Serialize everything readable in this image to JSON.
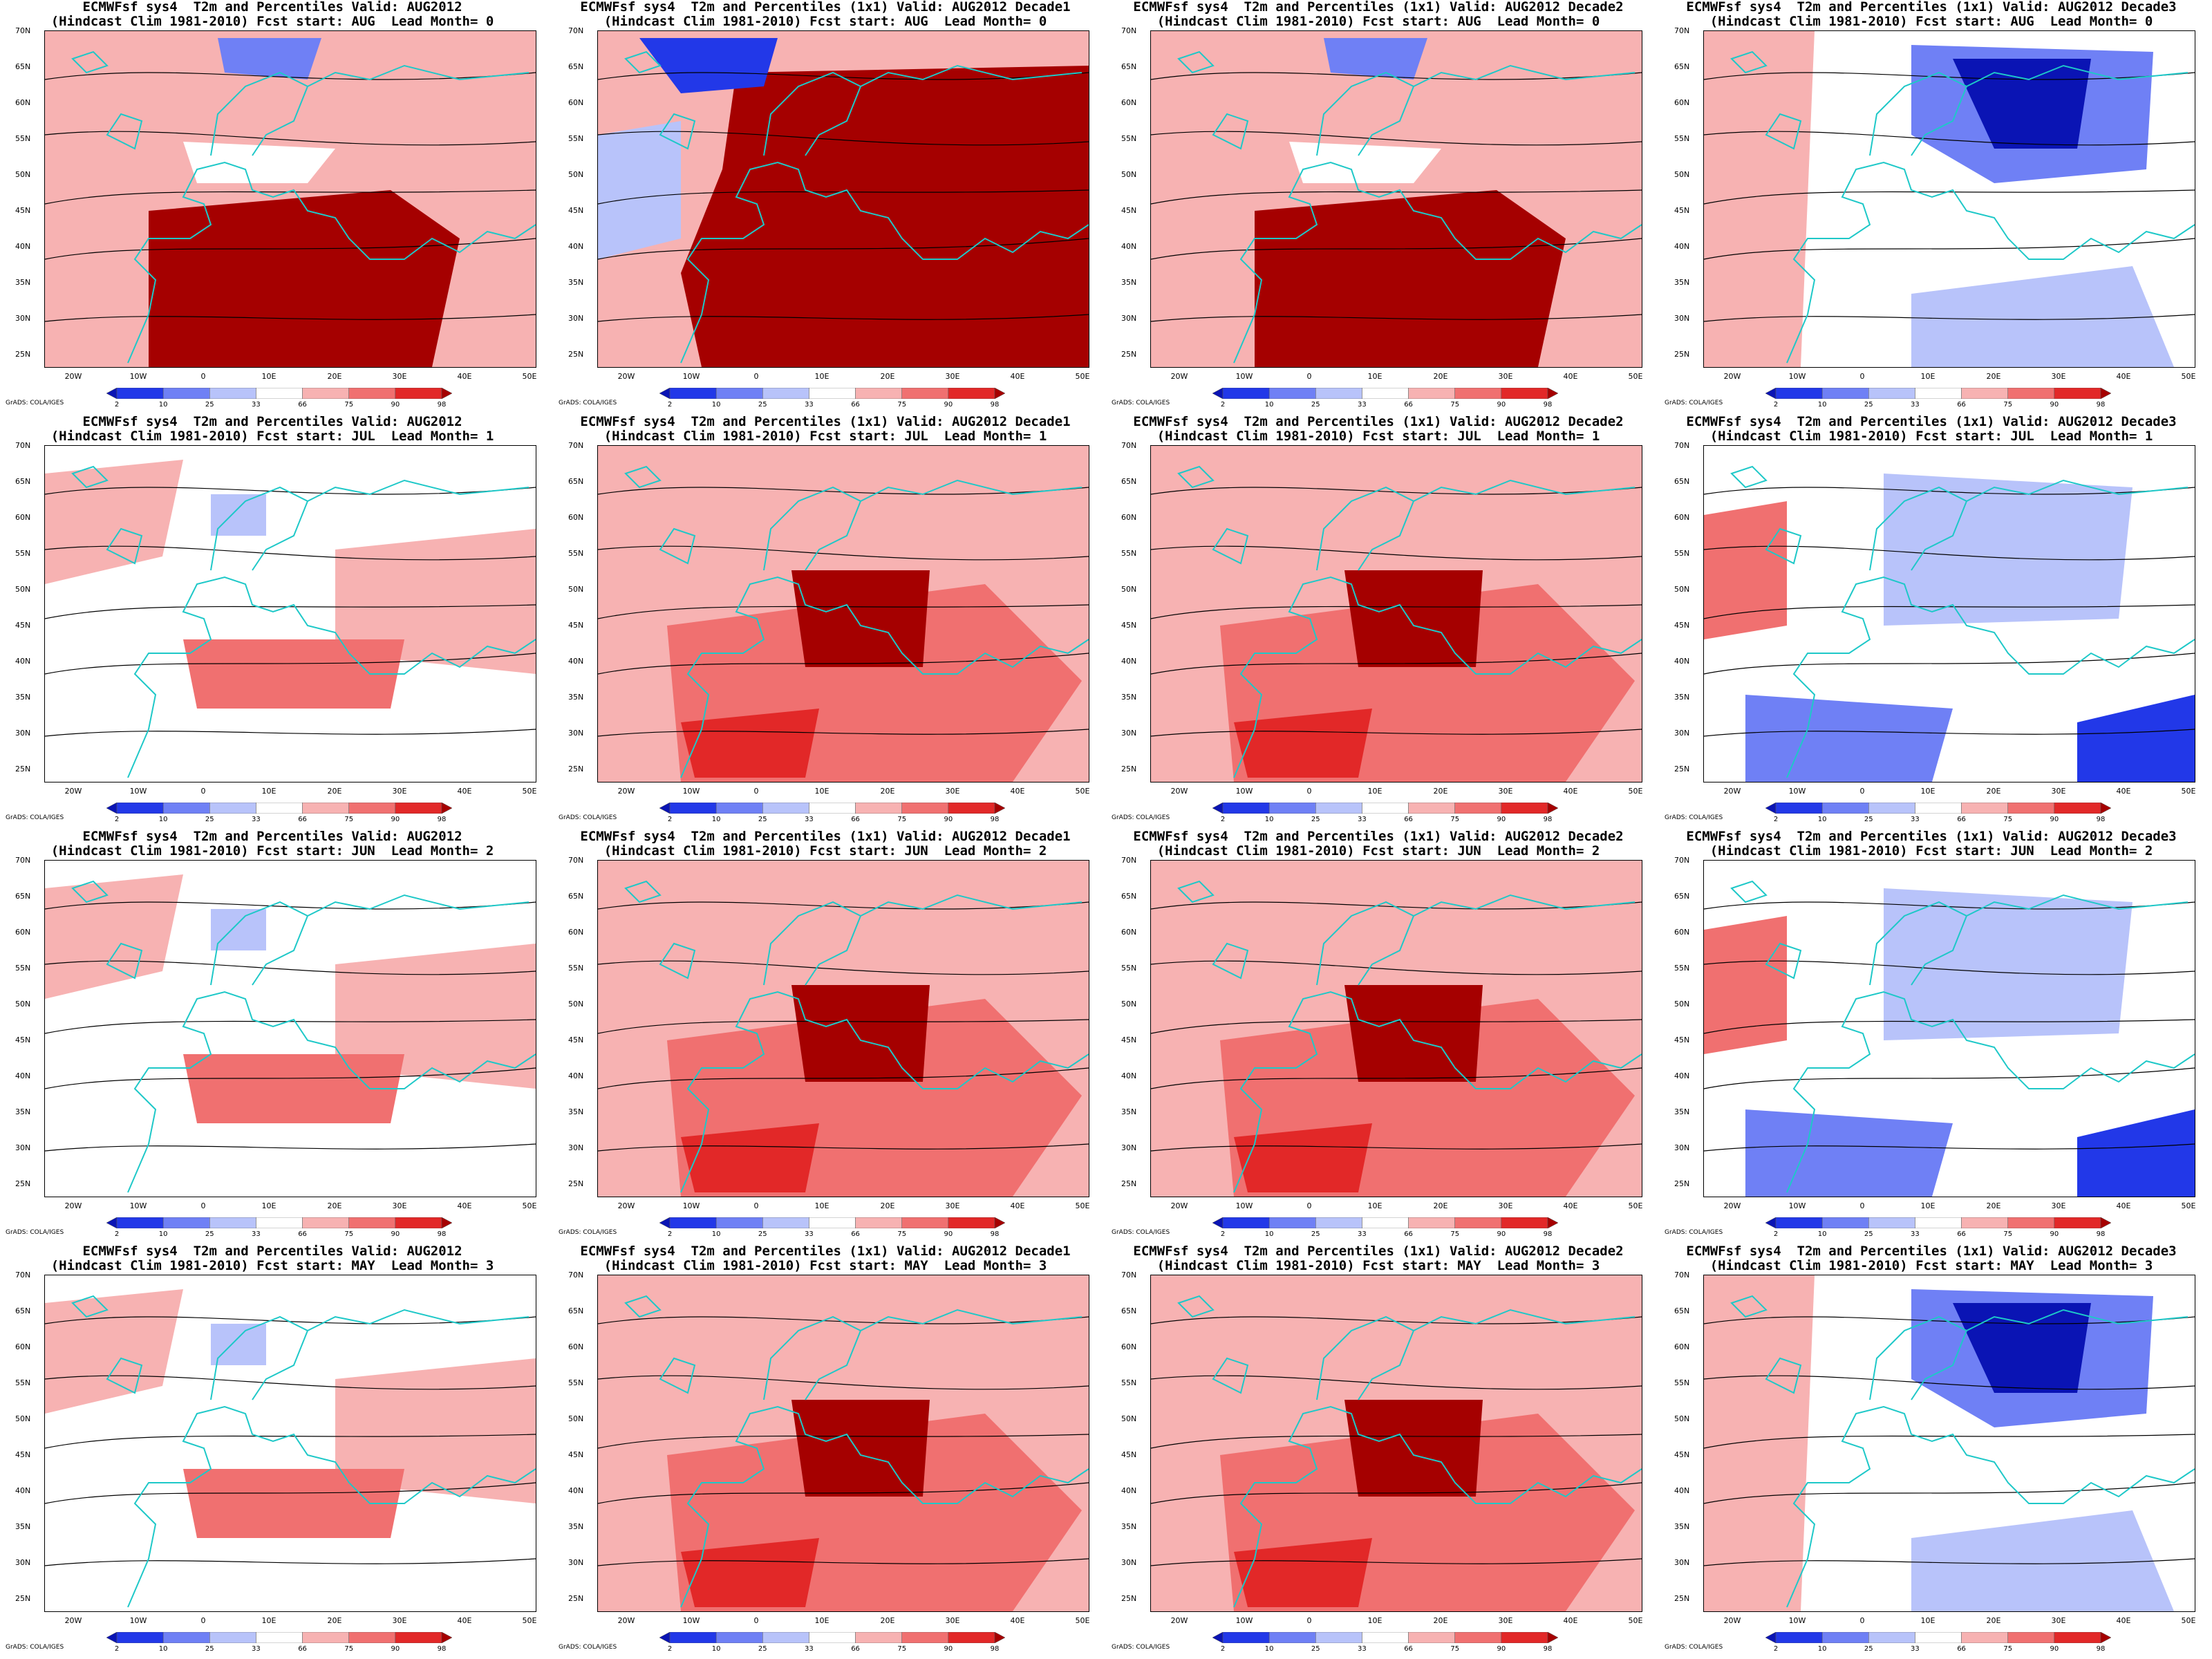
{
  "colorbar": {
    "ticks": [
      "2",
      "10",
      "25",
      "33",
      "66",
      "75",
      "90",
      "98"
    ],
    "colors": [
      "#0a14b4",
      "#2238e8",
      "#6f80f5",
      "#b8c3fa",
      "#ffffff",
      "#f7b2b2",
      "#f07070",
      "#e22828",
      "#a50000"
    ]
  },
  "credit": "GrADS: COLA/IGES",
  "latitude_labels": [
    "70N",
    "65N",
    "60N",
    "55N",
    "50N",
    "45N",
    "40N",
    "35N",
    "30N",
    "25N"
  ],
  "longitude_labels": [
    "20W",
    "10W",
    "0",
    "10E",
    "20E",
    "30E",
    "40E",
    "50E"
  ],
  "panels": [
    {
      "title1": "ECMWFsf sys4  T2m and Percentiles Valid: AUG2012",
      "title2": "(Hindcast Clim 1981-2010) Fcst start: AUG  Lead Month= 0",
      "anomaly": "warm-south-cold-north"
    },
    {
      "title1": "ECMWFsf sys4  T2m and Percentiles (1x1) Valid: AUG2012 Decade1",
      "title2": "(Hindcast Clim 1981-2010) Fcst start: AUG  Lead Month= 0",
      "anomaly": "strong-warm"
    },
    {
      "title1": "ECMWFsf sys4  T2m and Percentiles (1x1) Valid: AUG2012 Decade2",
      "title2": "(Hindcast Clim 1981-2010) Fcst start: AUG  Lead Month= 0",
      "anomaly": "warm-south-cold-north"
    },
    {
      "title1": "ECMWFsf sys4  T2m and Percentiles (1x1) Valid: AUG2012 Decade3",
      "title2": "(Hindcast Clim 1981-2010) Fcst start: AUG  Lead Month= 0",
      "anomaly": "cold-north"
    },
    {
      "title1": "ECMWFsf sys4  T2m and Percentiles Valid: AUG2012",
      "title2": "(Hindcast Clim 1981-2010) Fcst start: JUL  Lead Month= 1",
      "anomaly": "mild-warm"
    },
    {
      "title1": "ECMWFsf sys4  T2m and Percentiles (1x1) Valid: AUG2012 Decade1",
      "title2": "(Hindcast Clim 1981-2010) Fcst start: JUL  Lead Month= 1",
      "anomaly": "warm"
    },
    {
      "title1": "ECMWFsf sys4  T2m and Percentiles (1x1) Valid: AUG2012 Decade2",
      "title2": "(Hindcast Clim 1981-2010) Fcst start: JUL  Lead Month= 1",
      "anomaly": "warm"
    },
    {
      "title1": "ECMWFsf sys4  T2m and Percentiles (1x1) Valid: AUG2012 Decade3",
      "title2": "(Hindcast Clim 1981-2010) Fcst start: JUL  Lead Month= 1",
      "anomaly": "mild-cold"
    },
    {
      "title1": "ECMWFsf sys4  T2m and Percentiles Valid: AUG2012",
      "title2": "(Hindcast Clim 1981-2010) Fcst start: JUN  Lead Month= 2",
      "anomaly": "mild-warm"
    },
    {
      "title1": "ECMWFsf sys4  T2m and Percentiles (1x1) Valid: AUG2012 Decade1",
      "title2": "(Hindcast Clim 1981-2010) Fcst start: JUN  Lead Month= 2",
      "anomaly": "warm"
    },
    {
      "title1": "ECMWFsf sys4  T2m and Percentiles (1x1) Valid: AUG2012 Decade2",
      "title2": "(Hindcast Clim 1981-2010) Fcst start: JUN  Lead Month= 2",
      "anomaly": "warm"
    },
    {
      "title1": "ECMWFsf sys4  T2m and Percentiles (1x1) Valid: AUG2012 Decade3",
      "title2": "(Hindcast Clim 1981-2010) Fcst start: JUN  Lead Month= 2",
      "anomaly": "mild-cold"
    },
    {
      "title1": "ECMWFsf sys4  T2m and Percentiles Valid: AUG2012",
      "title2": "(Hindcast Clim 1981-2010) Fcst start: MAY  Lead Month= 3",
      "anomaly": "mild-warm"
    },
    {
      "title1": "ECMWFsf sys4  T2m and Percentiles (1x1) Valid: AUG2012 Decade1",
      "title2": "(Hindcast Clim 1981-2010) Fcst start: MAY  Lead Month= 3",
      "anomaly": "warm"
    },
    {
      "title1": "ECMWFsf sys4  T2m and Percentiles (1x1) Valid: AUG2012 Decade2",
      "title2": "(Hindcast Clim 1981-2010) Fcst start: MAY  Lead Month= 3",
      "anomaly": "warm"
    },
    {
      "title1": "ECMWFsf sys4  T2m and Percentiles (1x1) Valid: AUG2012 Decade3",
      "title2": "(Hindcast Clim 1981-2010) Fcst start: MAY  Lead Month= 3",
      "anomaly": "cold-north"
    }
  ]
}
